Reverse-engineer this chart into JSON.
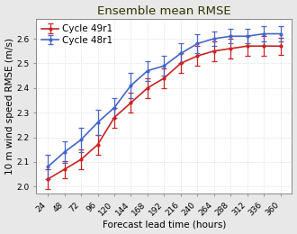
{
  "title": "Ensemble mean RMSE",
  "xlabel": "Forecast lead time (hours)",
  "ylabel": "10 m wind speed RMSE (m/s)",
  "x": [
    24,
    48,
    72,
    96,
    120,
    144,
    168,
    192,
    216,
    240,
    264,
    288,
    312,
    336,
    360
  ],
  "cycle49r1": [
    2.03,
    2.07,
    2.11,
    2.17,
    2.28,
    2.34,
    2.4,
    2.44,
    2.5,
    2.53,
    2.55,
    2.56,
    2.57,
    2.57,
    2.57
  ],
  "cycle49r1_err": [
    0.04,
    0.035,
    0.04,
    0.04,
    0.04,
    0.04,
    0.04,
    0.04,
    0.04,
    0.04,
    0.04,
    0.04,
    0.04,
    0.04,
    0.035
  ],
  "cycle48r1": [
    2.08,
    2.14,
    2.19,
    2.26,
    2.32,
    2.41,
    2.47,
    2.49,
    2.54,
    2.58,
    2.6,
    2.61,
    2.61,
    2.62,
    2.62
  ],
  "cycle48r1_err": [
    0.05,
    0.045,
    0.05,
    0.05,
    0.04,
    0.05,
    0.04,
    0.04,
    0.04,
    0.04,
    0.03,
    0.03,
    0.03,
    0.03,
    0.03
  ],
  "color_49r1": "#cc2222",
  "color_48r1": "#4466cc",
  "legend_labels": [
    "Cycle 49r1",
    "Cycle 48r1"
  ],
  "ylim": [
    1.97,
    2.68
  ],
  "yticks": [
    2.0,
    2.1,
    2.2,
    2.3,
    2.4,
    2.5,
    2.6
  ],
  "plot_bg": "#ffffff",
  "fig_bg": "#e8e8e8",
  "grid_color": "#cccccc",
  "title_color": "#333300",
  "spine_color": "#888888",
  "title_fontsize": 9.5,
  "label_fontsize": 7.5,
  "tick_fontsize": 6.5,
  "legend_fontsize": 7.5
}
